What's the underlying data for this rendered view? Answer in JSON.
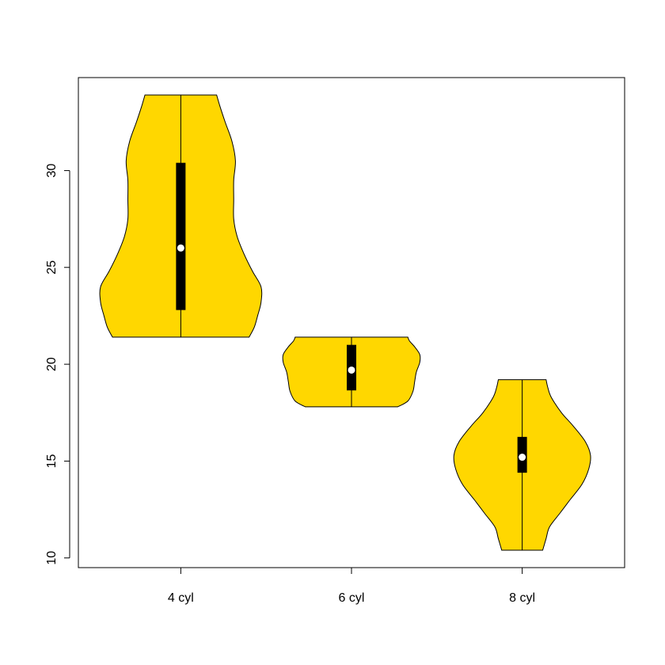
{
  "chart_data": {
    "type": "violin",
    "title": "",
    "xlabel": "",
    "ylabel": "",
    "categories": [
      "4 cyl",
      "6 cyl",
      "8 cyl"
    ],
    "y_ticks": [
      10,
      15,
      20,
      25,
      30
    ],
    "ylim": [
      9.5,
      34.8
    ],
    "xlim": [
      0.4,
      3.6
    ],
    "fill_color": "#FFD700",
    "box_color": "#000000",
    "median_color": "#ffffff",
    "violins": [
      {
        "category": "4 cyl",
        "min": 21.4,
        "q1": 22.8,
        "median": 26.0,
        "q3": 30.4,
        "max": 33.9,
        "density": [
          [
            21.4,
            0.4
          ],
          [
            21.9,
            0.43
          ],
          [
            22.5,
            0.45
          ],
          [
            23.2,
            0.47
          ],
          [
            24.0,
            0.47
          ],
          [
            24.8,
            0.42
          ],
          [
            25.7,
            0.37
          ],
          [
            26.6,
            0.33
          ],
          [
            27.5,
            0.31
          ],
          [
            28.5,
            0.31
          ],
          [
            29.5,
            0.31
          ],
          [
            30.5,
            0.32
          ],
          [
            31.5,
            0.3
          ],
          [
            32.5,
            0.26
          ],
          [
            33.3,
            0.23
          ],
          [
            33.9,
            0.21
          ]
        ]
      },
      {
        "category": "6 cyl",
        "min": 17.8,
        "q1": 18.65,
        "median": 19.7,
        "q3": 21.0,
        "max": 21.4,
        "density": [
          [
            17.8,
            0.27
          ],
          [
            18.1,
            0.33
          ],
          [
            18.6,
            0.36
          ],
          [
            19.1,
            0.37
          ],
          [
            19.6,
            0.38
          ],
          [
            20.1,
            0.4
          ],
          [
            20.5,
            0.4
          ],
          [
            20.9,
            0.37
          ],
          [
            21.2,
            0.34
          ],
          [
            21.4,
            0.33
          ]
        ]
      },
      {
        "category": "8 cyl",
        "min": 10.4,
        "q1": 14.4,
        "median": 15.2,
        "q3": 16.25,
        "max": 19.2,
        "density": [
          [
            10.4,
            0.12
          ],
          [
            11.0,
            0.14
          ],
          [
            11.6,
            0.16
          ],
          [
            12.3,
            0.22
          ],
          [
            13.0,
            0.28
          ],
          [
            13.8,
            0.35
          ],
          [
            14.6,
            0.39
          ],
          [
            15.3,
            0.4
          ],
          [
            16.0,
            0.37
          ],
          [
            16.8,
            0.3
          ],
          [
            17.5,
            0.23
          ],
          [
            18.3,
            0.17
          ],
          [
            18.8,
            0.15
          ],
          [
            19.2,
            0.14
          ]
        ]
      }
    ]
  }
}
